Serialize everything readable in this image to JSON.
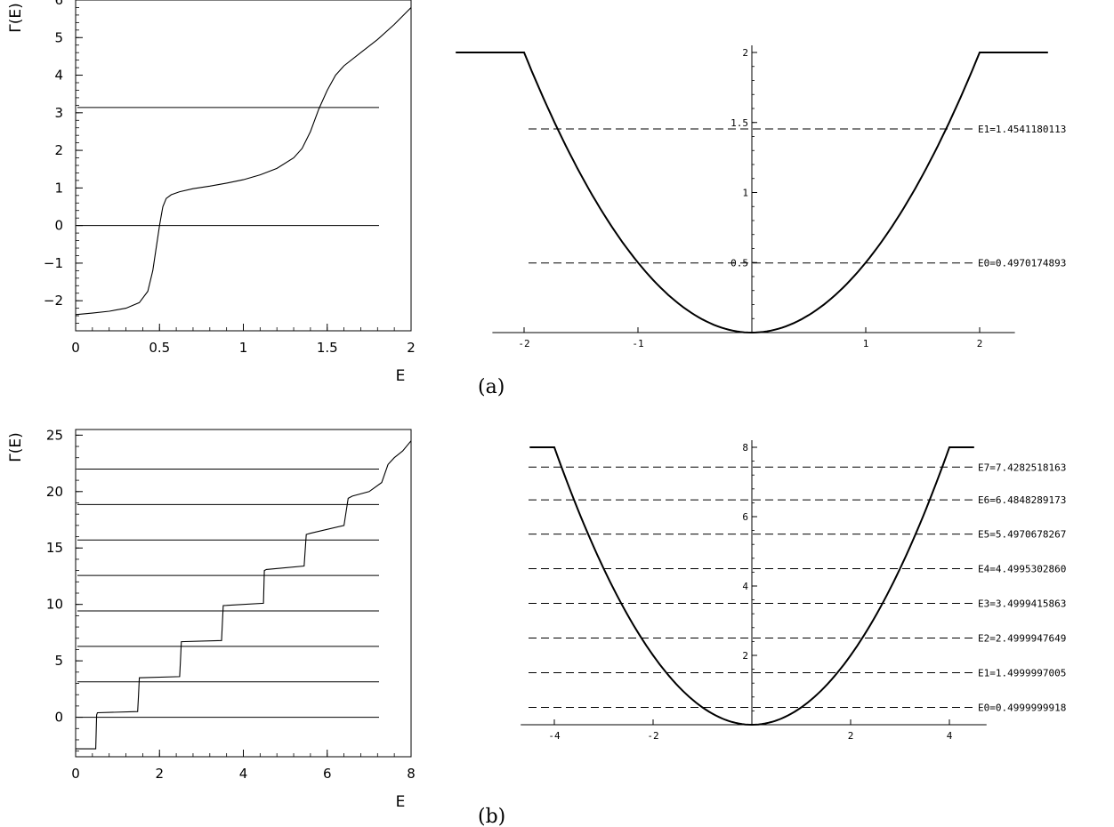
{
  "panel_labels": {
    "a": "(a)",
    "b": "(b)"
  },
  "chart_data": [
    {
      "id": "gamma_a",
      "type": "line",
      "xlabel": "E",
      "ylabel": "Γ(E)",
      "xlim": [
        0,
        2
      ],
      "ylim": [
        -2.8,
        6
      ],
      "xticks": [
        0,
        0.5,
        1,
        1.5,
        2
      ],
      "xtick_labels": [
        "0",
        "0.5",
        "1",
        "1.5",
        "2"
      ],
      "yticks": [
        -2,
        -1,
        0,
        1,
        2,
        3,
        4,
        5,
        6
      ],
      "ytick_labels": [
        "−2",
        "−1",
        "0",
        "1",
        "2",
        "3",
        "4",
        "5",
        "6"
      ],
      "hlines": [
        0,
        3.14159
      ],
      "series": [
        {
          "x": [
            0,
            0.1,
            0.2,
            0.3,
            0.38,
            0.43,
            0.46,
            0.48,
            0.49,
            0.5,
            0.51,
            0.52,
            0.54,
            0.57,
            0.62,
            0.7,
            0.8,
            0.9,
            1.0,
            1.1,
            1.2,
            1.3,
            1.35,
            1.4,
            1.45,
            1.5,
            1.55,
            1.6,
            1.7,
            1.8,
            1.9,
            2.0
          ],
          "y": [
            -2.37,
            -2.33,
            -2.28,
            -2.2,
            -2.05,
            -1.75,
            -1.2,
            -0.6,
            -0.3,
            0.0,
            0.25,
            0.5,
            0.72,
            0.82,
            0.9,
            0.98,
            1.05,
            1.13,
            1.22,
            1.35,
            1.52,
            1.8,
            2.05,
            2.5,
            3.1,
            3.6,
            4.0,
            4.25,
            4.6,
            4.95,
            5.35,
            5.8
          ]
        }
      ]
    },
    {
      "id": "potential_a",
      "type": "line",
      "xlim": [
        -2.2,
        2.2
      ],
      "ylim": [
        0,
        2
      ],
      "xticks": [
        -2,
        -1,
        1,
        2
      ],
      "xtick_labels": [
        "-2",
        "-1",
        "1",
        "2"
      ],
      "yticks": [
        0.5,
        1,
        1.5,
        2
      ],
      "ytick_labels": [
        "0.5",
        "1",
        "1.5",
        "2"
      ],
      "curve": "y = x^2/2, clipped at 2 for |x| >= 2",
      "levels": [
        {
          "value": 0.4970174893,
          "label": "E0=0.4970174893"
        },
        {
          "value": 1.4541180113,
          "label": "E1=1.4541180113"
        }
      ]
    },
    {
      "id": "gamma_b",
      "type": "line",
      "xlabel": "E",
      "ylabel": "Γ(E)",
      "xlim": [
        0,
        8
      ],
      "ylim": [
        -3.5,
        25.5
      ],
      "xticks": [
        0,
        2,
        4,
        6,
        8
      ],
      "xtick_labels": [
        "0",
        "2",
        "4",
        "6",
        "8"
      ],
      "yticks": [
        0,
        5,
        10,
        15,
        20,
        25
      ],
      "ytick_labels": [
        "0",
        "5",
        "10",
        "15",
        "20",
        "25"
      ],
      "hlines": [
        0,
        3.1416,
        6.2832,
        9.4248,
        12.5664,
        15.708,
        18.8496,
        21.9911
      ],
      "series": [
        {
          "x": [
            0,
            0.48,
            0.5,
            0.52,
            1.48,
            1.5,
            1.52,
            2.48,
            2.5,
            2.52,
            3.48,
            3.5,
            3.52,
            4.48,
            4.5,
            4.55,
            5.45,
            5.5,
            5.6,
            6.4,
            6.5,
            6.6,
            7.0,
            7.3,
            7.45,
            7.6,
            7.8,
            8.0
          ],
          "y": [
            -2.8,
            -2.8,
            0.2,
            0.4,
            0.5,
            2.0,
            3.5,
            3.6,
            5.0,
            6.7,
            6.8,
            8.3,
            9.9,
            10.1,
            13.0,
            13.1,
            13.4,
            16.2,
            16.3,
            17.0,
            19.4,
            19.6,
            20.0,
            20.8,
            22.4,
            23.0,
            23.6,
            24.5
          ]
        }
      ]
    },
    {
      "id": "potential_b",
      "type": "line",
      "xlim": [
        -4.5,
        4.5
      ],
      "ylim": [
        0,
        8
      ],
      "xticks": [
        -4,
        -2,
        2,
        4
      ],
      "xtick_labels": [
        "-4",
        "-2",
        "2",
        "4"
      ],
      "yticks": [
        2,
        4,
        6,
        8
      ],
      "ytick_labels": [
        "2",
        "4",
        "6",
        "8"
      ],
      "curve": "y = x^2/2, clipped at 8 for |x| >= 4",
      "levels": [
        {
          "value": 0.4999999918,
          "label": "E0=0.4999999918"
        },
        {
          "value": 1.4999997005,
          "label": "E1=1.4999997005"
        },
        {
          "value": 2.4999947649,
          "label": "E2=2.4999947649"
        },
        {
          "value": 3.4999415863,
          "label": "E3=3.4999415863"
        },
        {
          "value": 4.499530286,
          "label": "E4=4.4995302860"
        },
        {
          "value": 5.4970678267,
          "label": "E5=5.4970678267"
        },
        {
          "value": 6.4848289173,
          "label": "E6=6.4848289173"
        },
        {
          "value": 7.4282518163,
          "label": "E7=7.4282518163"
        }
      ]
    }
  ]
}
